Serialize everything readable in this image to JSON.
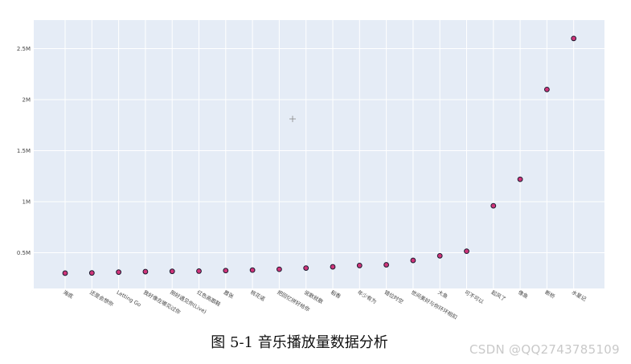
{
  "chart_data": {
    "type": "scatter",
    "title": "",
    "xlabel": "",
    "ylabel": "",
    "categories": [
      "海底",
      "还是会想你",
      "Letting Go",
      "我好像在哪见过你",
      "刚好遇见你(Live)",
      "红色高跟鞋",
      "嚣张",
      "桃花诺",
      "把回忆拼好给你",
      "说散就散",
      "稻香",
      "年少有为",
      "错位时空",
      "世间美好与你环环相扣",
      "大鱼",
      "可不可以",
      "起风了",
      "像鱼",
      "断桥",
      "水星记"
    ],
    "values": [
      300000,
      302000,
      310000,
      315000,
      318000,
      320000,
      325000,
      330000,
      338000,
      350000,
      362000,
      375000,
      382000,
      425000,
      470000,
      515000,
      960000,
      1220000,
      2100000,
      2600000
    ],
    "ylim": [
      150000,
      2780000
    ],
    "yticks": [
      {
        "value": 500000,
        "label": "0.5M"
      },
      {
        "value": 1000000,
        "label": "1M"
      },
      {
        "value": 1500000,
        "label": "1.5M"
      },
      {
        "value": 2000000,
        "label": "2M"
      },
      {
        "value": 2500000,
        "label": "2.5M"
      }
    ],
    "grid": true,
    "plot_bgcolor": "#e5ecf6",
    "marker_fill": "#d0357a",
    "marker_line": "#1a1a2e"
  },
  "caption": "图 5-1 音乐播放量数据分析",
  "watermark": "CSDN @QQ2743785109"
}
